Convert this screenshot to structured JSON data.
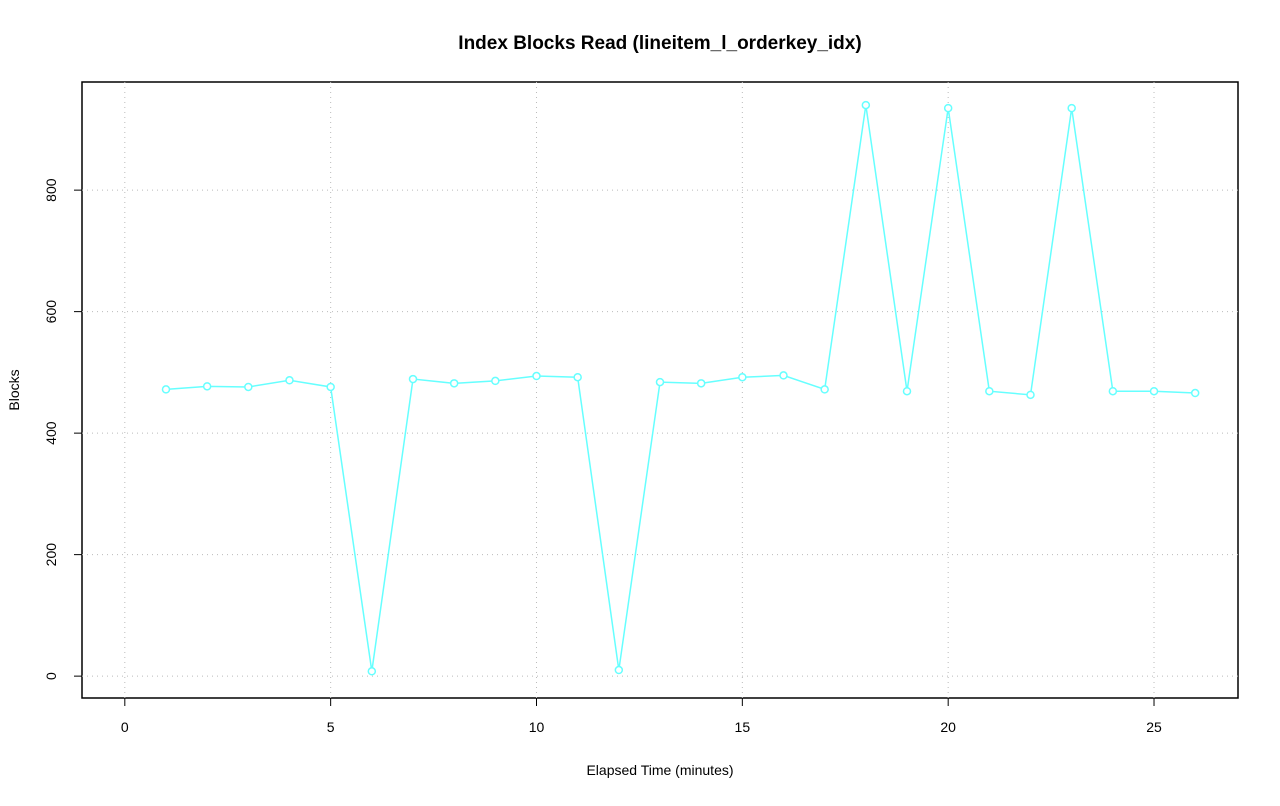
{
  "chart_data": {
    "type": "line",
    "title": "Index Blocks Read (lineitem_l_orderkey_idx)",
    "x_label": "Elapsed Time (minutes)",
    "y_label": "Blocks",
    "x": [
      1,
      2,
      3,
      4,
      5,
      6,
      7,
      8,
      9,
      10,
      11,
      12,
      13,
      14,
      15,
      16,
      17,
      18,
      19,
      20,
      21,
      22,
      23,
      24,
      25,
      26
    ],
    "series": [
      {
        "name": "lineitem_l_orderkey_idx",
        "color": "#66ffff",
        "values": [
          472,
          477,
          476,
          487,
          476,
          8,
          489,
          482,
          486,
          494,
          492,
          10,
          484,
          482,
          492,
          495,
          472,
          940,
          469,
          935,
          469,
          463,
          935,
          469,
          469,
          466
        ]
      }
    ],
    "xlim": [
      -1.04,
      27.04
    ],
    "xticks": [
      0,
      5,
      10,
      15,
      20,
      25
    ],
    "ylim": [
      -36,
      978
    ],
    "yticks": [
      0,
      200,
      400,
      600,
      800
    ],
    "grid": true
  }
}
